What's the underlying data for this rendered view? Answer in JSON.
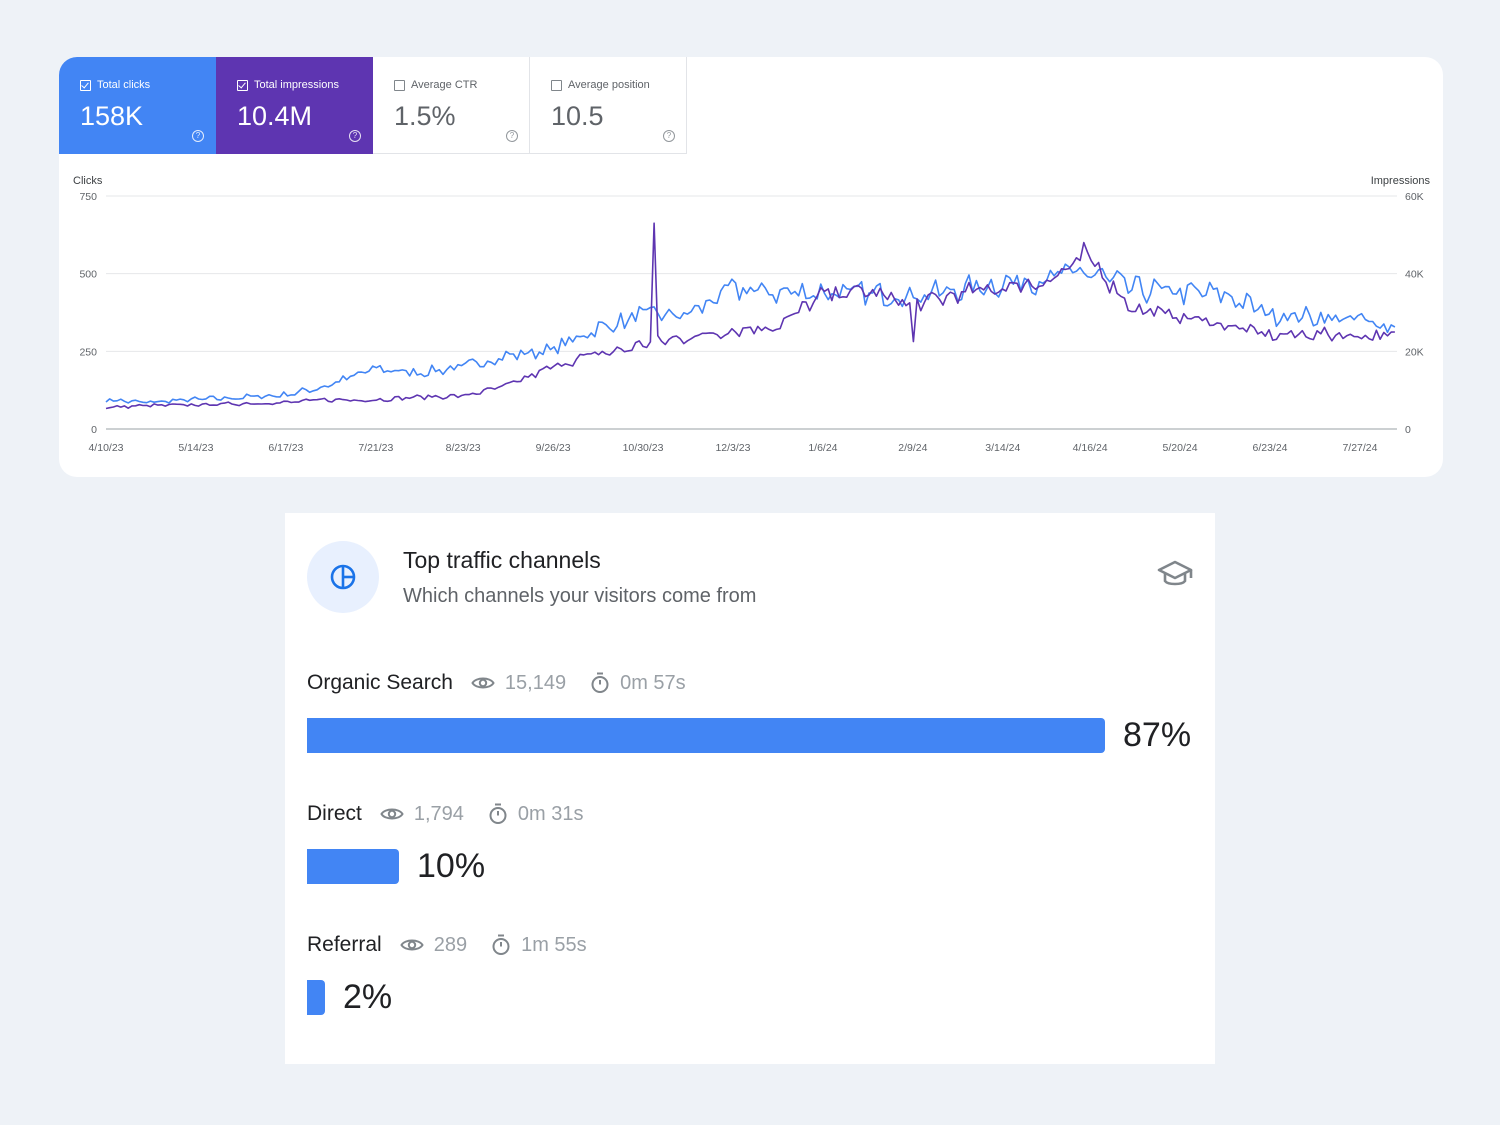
{
  "performance": {
    "metrics": [
      {
        "label": "Total clicks",
        "value": "158K",
        "checked": true
      },
      {
        "label": "Total impressions",
        "value": "10.4M",
        "checked": true
      },
      {
        "label": "Average CTR",
        "value": "1.5%",
        "checked": false
      },
      {
        "label": "Average position",
        "value": "10.5",
        "checked": false
      }
    ],
    "help_glyph": "?"
  },
  "chart_data": {
    "type": "line",
    "left_axis_label": "Clicks",
    "right_axis_label": "Impressions",
    "left_ticks": [
      "0",
      "250",
      "500",
      "750"
    ],
    "right_ticks": [
      "0",
      "20K",
      "40K",
      "60K"
    ],
    "ylim_left": [
      0,
      750
    ],
    "ylim_right": [
      0,
      60000
    ],
    "x_ticks": [
      "4/10/23",
      "5/14/23",
      "6/17/23",
      "7/21/23",
      "8/23/23",
      "9/26/23",
      "10/30/23",
      "12/3/23",
      "1/6/24",
      "2/9/24",
      "3/14/24",
      "4/16/24",
      "5/20/24",
      "6/23/24",
      "7/27/24"
    ],
    "x_range": [
      "4/10/23",
      "8/10/24"
    ],
    "grid": true,
    "colors": {
      "clicks": "#4285f4",
      "impressions": "#5e35b1"
    },
    "series": [
      {
        "key": "clicks",
        "axis": "left",
        "points": [
          [
            "4/10/23",
            95
          ],
          [
            "4/24/23",
            85
          ],
          [
            "5/14/23",
            95
          ],
          [
            "5/28/23",
            100
          ],
          [
            "6/17/23",
            110
          ],
          [
            "7/1/23",
            135
          ],
          [
            "7/21/23",
            195
          ],
          [
            "8/5/23",
            180
          ],
          [
            "8/23/23",
            200
          ],
          [
            "9/8/23",
            235
          ],
          [
            "9/26/23",
            255
          ],
          [
            "10/10/23",
            315
          ],
          [
            "10/24/23",
            350
          ],
          [
            "10/30/23",
            370
          ],
          [
            "11/15/23",
            365
          ],
          [
            "12/3/23",
            450
          ],
          [
            "12/20/23",
            440
          ],
          [
            "1/6/24",
            440
          ],
          [
            "1/22/24",
            435
          ],
          [
            "2/9/24",
            430
          ],
          [
            "2/25/24",
            445
          ],
          [
            "3/14/24",
            470
          ],
          [
            "3/30/24",
            485
          ],
          [
            "4/16/24",
            505
          ],
          [
            "5/2/24",
            450
          ],
          [
            "5/20/24",
            440
          ],
          [
            "6/5/24",
            435
          ],
          [
            "6/23/24",
            370
          ],
          [
            "7/10/24",
            360
          ],
          [
            "7/27/24",
            350
          ],
          [
            "8/10/24",
            330
          ]
        ]
      },
      {
        "key": "impressions",
        "axis": "right",
        "points": [
          [
            "4/10/23",
            5500
          ],
          [
            "4/24/23",
            6000
          ],
          [
            "5/14/23",
            6200
          ],
          [
            "5/28/23",
            6500
          ],
          [
            "6/17/23",
            6800
          ],
          [
            "7/1/23",
            7500
          ],
          [
            "7/21/23",
            7500
          ],
          [
            "8/5/23",
            8200
          ],
          [
            "8/23/23",
            8500
          ],
          [
            "9/8/23",
            11000
          ],
          [
            "9/26/23",
            16000
          ],
          [
            "10/10/23",
            19000
          ],
          [
            "10/24/23",
            20500
          ],
          [
            "10/30/23",
            22000
          ],
          [
            "11/15/23",
            23500
          ],
          [
            "12/3/23",
            25500
          ],
          [
            "12/20/23",
            26500
          ],
          [
            "1/6/24",
            34500
          ],
          [
            "1/22/24",
            35500
          ],
          [
            "2/9/24",
            32000
          ],
          [
            "2/25/24",
            34500
          ],
          [
            "3/14/24",
            36500
          ],
          [
            "3/30/24",
            38000
          ],
          [
            "4/16/24",
            44000
          ],
          [
            "5/2/24",
            31000
          ],
          [
            "5/20/24",
            29000
          ],
          [
            "6/5/24",
            27000
          ],
          [
            "6/23/24",
            24000
          ],
          [
            "7/10/24",
            24500
          ],
          [
            "7/27/24",
            24000
          ],
          [
            "8/10/24",
            24000
          ]
        ],
        "spikes": [
          [
            "11/3/23",
            53000
          ],
          [
            "4/14/24",
            48000
          ],
          [
            "2/9/24",
            22500
          ]
        ]
      }
    ]
  },
  "channels": {
    "title": "Top traffic channels",
    "subtitle": "Which channels your visitors come from",
    "items": [
      {
        "name": "Organic Search",
        "visits": "15,149",
        "duration": "0m 57s",
        "percent_label": "87%",
        "fraction": 0.87
      },
      {
        "name": "Direct",
        "visits": "1,794",
        "duration": "0m 31s",
        "percent_label": "10%",
        "fraction": 0.1
      },
      {
        "name": "Referral",
        "visits": "289",
        "duration": "1m 55s",
        "percent_label": "2%",
        "fraction": 0.02
      }
    ],
    "bar_color": "#4285f4"
  }
}
